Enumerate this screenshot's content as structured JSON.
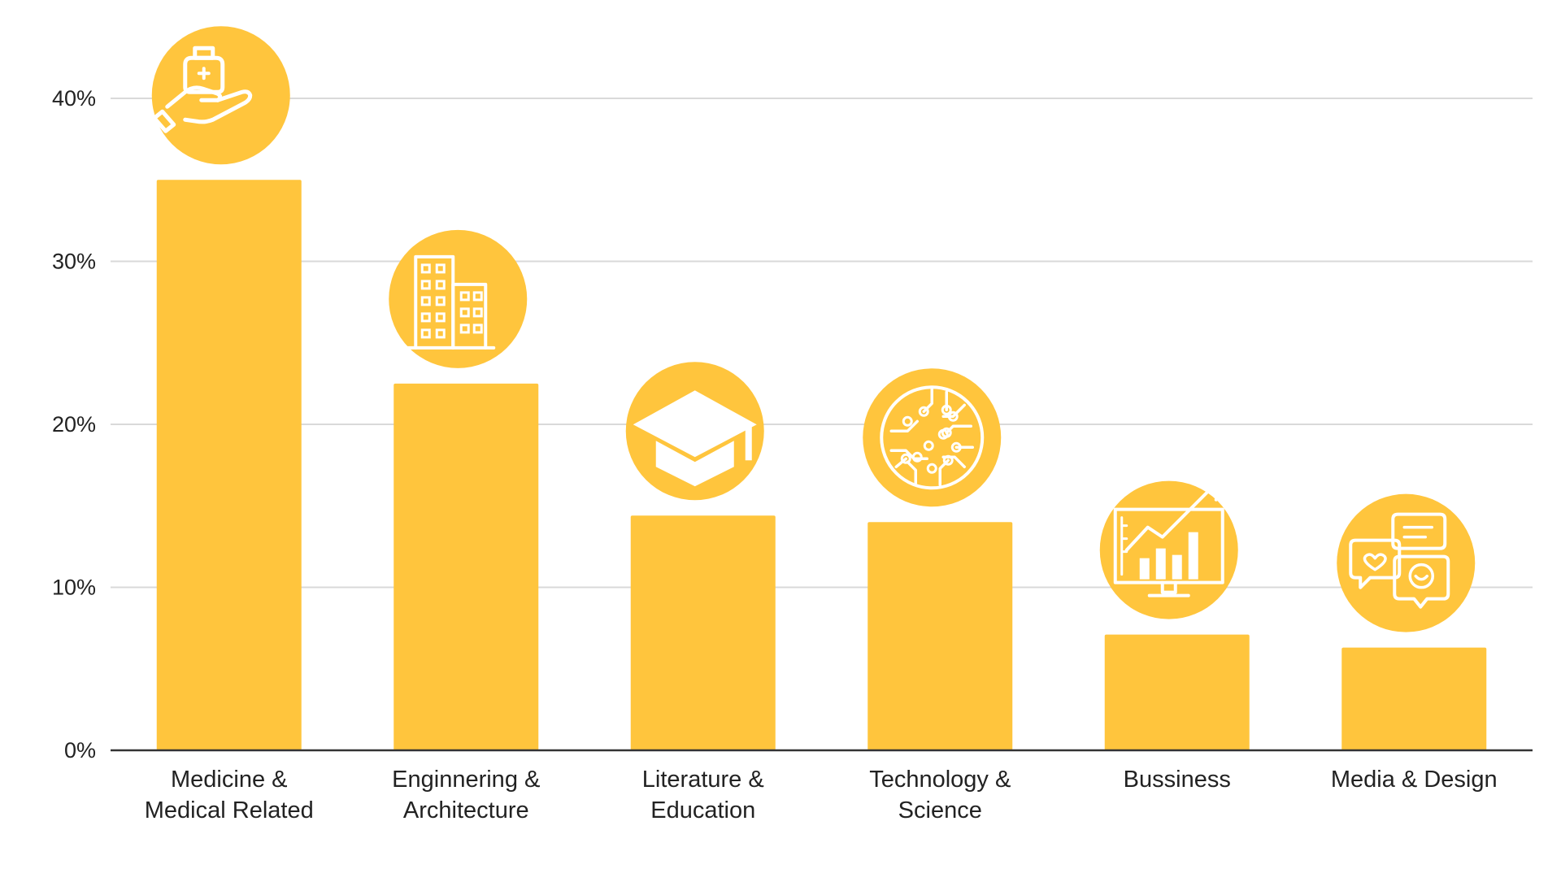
{
  "chart_data": {
    "type": "bar",
    "categories": [
      [
        "Medicine &",
        "Medical Related"
      ],
      [
        "Enginnering &",
        "Architecture"
      ],
      [
        "Literature &",
        "Education"
      ],
      [
        "Technology &",
        "Science"
      ],
      [
        "Bussiness"
      ],
      [
        "Media & Design"
      ]
    ],
    "values": [
      35,
      22.5,
      14.4,
      14.0,
      7.1,
      6.3
    ],
    "icons": [
      "hand-holding-medicine-icon",
      "office-buildings-icon",
      "graduation-cap-icon",
      "circuit-chip-icon",
      "monitor-growth-chart-icon",
      "chat-feedback-icon"
    ],
    "y_ticks": [
      0,
      10,
      20,
      30,
      40
    ],
    "y_tick_labels": [
      "0%",
      "10%",
      "20%",
      "30%",
      "40%"
    ],
    "ylim": [
      0,
      40
    ],
    "title": "",
    "xlabel": "",
    "ylabel": "",
    "grid": true,
    "legend": "none",
    "colors": {
      "bar": "#FFC53D",
      "icon_fill": "#FFC53D",
      "icon_line": "#FFFFFF",
      "grid": "#D9D9D9",
      "axis": "#333333",
      "text": "#222222"
    }
  }
}
